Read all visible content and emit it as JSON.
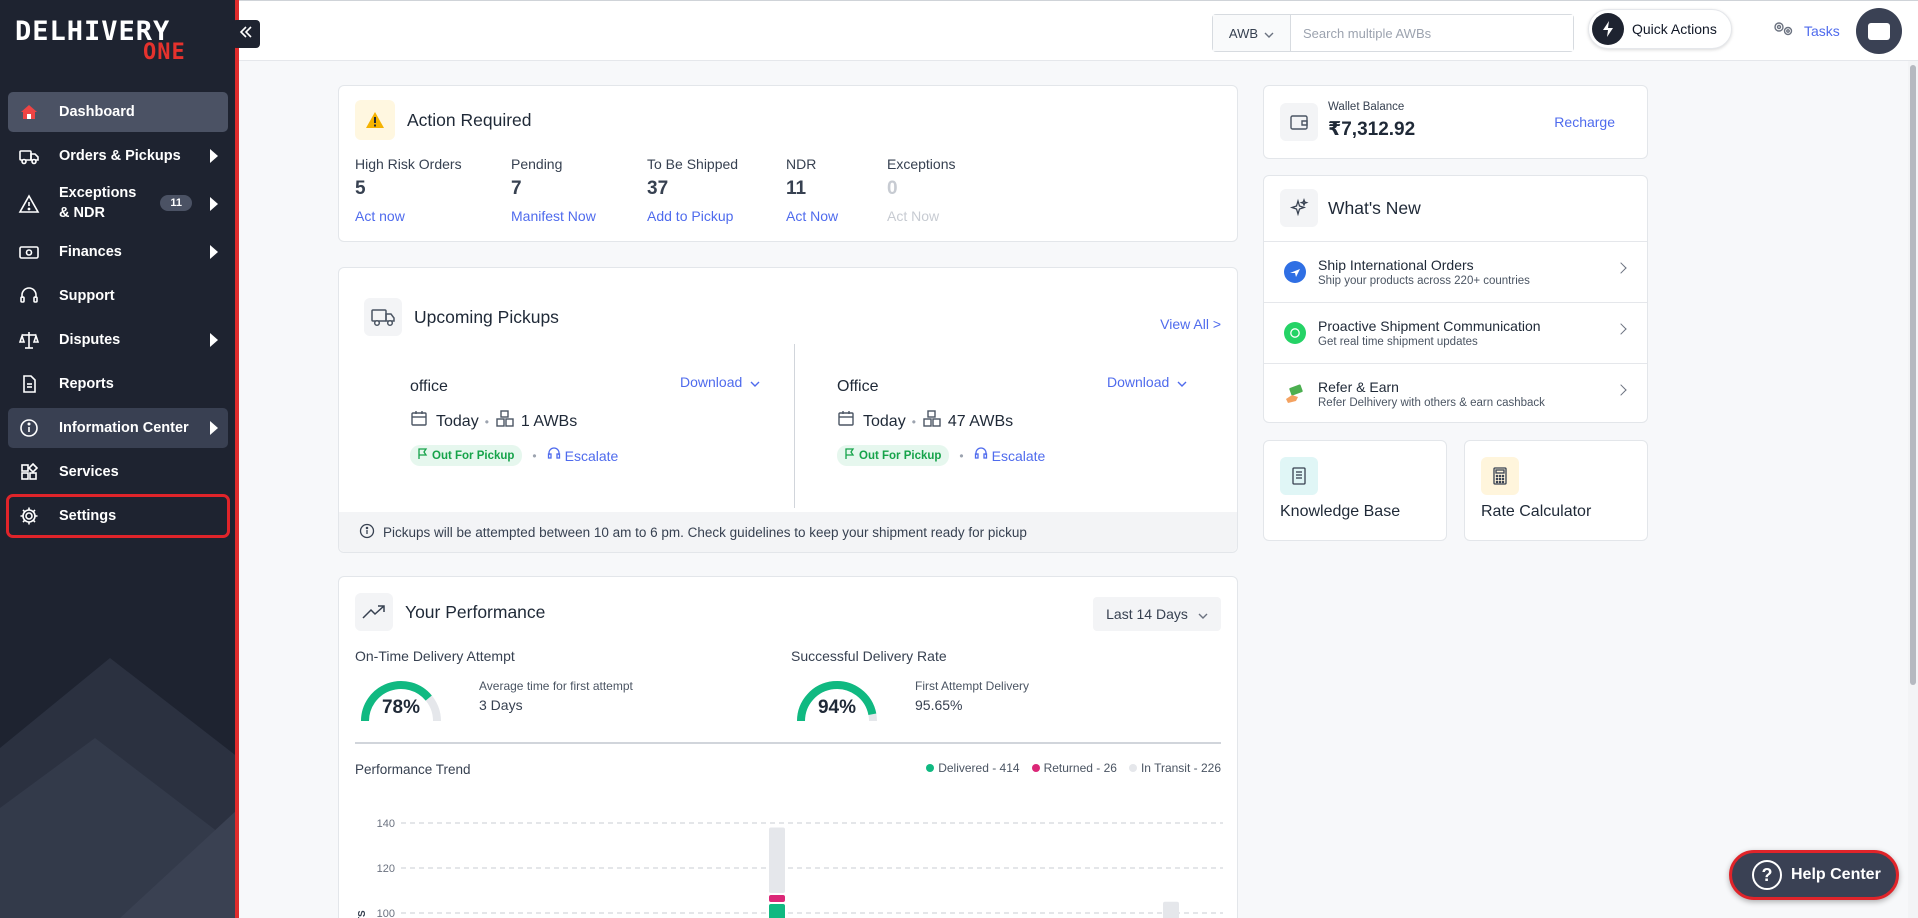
{
  "brand": {
    "line1": "DELHIVERY",
    "line2": "ONE"
  },
  "sidebar": {
    "items": [
      {
        "label": "Dashboard"
      },
      {
        "label": "Orders & Pickups"
      },
      {
        "label": "Exceptions & NDR",
        "badge": "11"
      },
      {
        "label": "Finances"
      },
      {
        "label": "Support"
      },
      {
        "label": "Disputes"
      },
      {
        "label": "Reports"
      },
      {
        "label": "Information Center"
      },
      {
        "label": "Services"
      },
      {
        "label": "Settings"
      }
    ]
  },
  "topbar": {
    "awb_type": "AWB",
    "search_placeholder": "Search multiple AWBs",
    "quick_actions": "Quick Actions",
    "tasks": "Tasks"
  },
  "action_required": {
    "title": "Action Required",
    "stats": [
      {
        "label": "High Risk Orders",
        "value": "5",
        "action": "Act now"
      },
      {
        "label": "Pending",
        "value": "7",
        "action": "Manifest Now"
      },
      {
        "label": "To Be Shipped",
        "value": "37",
        "action": "Add to Pickup"
      },
      {
        "label": "NDR",
        "value": "11",
        "action": "Act Now"
      },
      {
        "label": "Exceptions",
        "value": "0",
        "action": "Act Now"
      }
    ]
  },
  "pickups": {
    "title": "Upcoming Pickups",
    "view_all": "View All >",
    "items": [
      {
        "name": "office",
        "download": "Download",
        "day": "Today",
        "awbs": "1 AWBs",
        "status": "Out For Pickup",
        "escalate": "Escalate"
      },
      {
        "name": "Office",
        "download": "Download",
        "day": "Today",
        "awbs": "47 AWBs",
        "status": "Out For Pickup",
        "escalate": "Escalate"
      }
    ],
    "note": "Pickups will be attempted between 10 am to 6 pm. Check guidelines to keep your shipment ready for pickup"
  },
  "performance": {
    "title": "Your Performance",
    "range": "Last 14 Days",
    "on_time": {
      "label": "On-Time Delivery Attempt",
      "percent": 78,
      "display": "78%",
      "sub_label": "Average time for first attempt",
      "sub_value": "3 Days"
    },
    "success": {
      "label": "Successful Delivery Rate",
      "percent": 94,
      "display": "94%",
      "sub_label": "First Attempt Delivery",
      "sub_value": "95.65%"
    },
    "trend_title": "Performance Trend",
    "legend": [
      {
        "label": "Delivered - 414",
        "color": "#10b981"
      },
      {
        "label": "Returned - 26",
        "color": "#db2777"
      },
      {
        "label": "In Transit - 226",
        "color": "#e5e7eb"
      }
    ],
    "y_axis_label": "ENTS"
  },
  "chart_data": {
    "type": "bar",
    "title": "Performance Trend",
    "ylabel": "ENTS",
    "yticks": [
      100,
      120,
      140
    ],
    "ylim": [
      100,
      140
    ],
    "visible_bars": [
      {
        "series": "In Transit",
        "top": 138
      },
      {
        "series": "Returned",
        "top": 108
      },
      {
        "series": "Delivered",
        "top": 104
      },
      {
        "series": "In Transit",
        "top": 105
      }
    ]
  },
  "wallet": {
    "label": "Wallet Balance",
    "amount": "₹7,312.92",
    "recharge": "Recharge"
  },
  "whats_new": {
    "title": "What's New",
    "items": [
      {
        "title": "Ship International Orders",
        "sub": "Ship your products across 220+ countries"
      },
      {
        "title": "Proactive Shipment Communication",
        "sub": "Get real time shipment updates"
      },
      {
        "title": "Refer & Earn",
        "sub": "Refer Delhivery with others & earn cashback"
      }
    ]
  },
  "tiles": [
    {
      "label": "Knowledge Base"
    },
    {
      "label": "Rate Calculator"
    }
  ],
  "help_center": "Help Center"
}
